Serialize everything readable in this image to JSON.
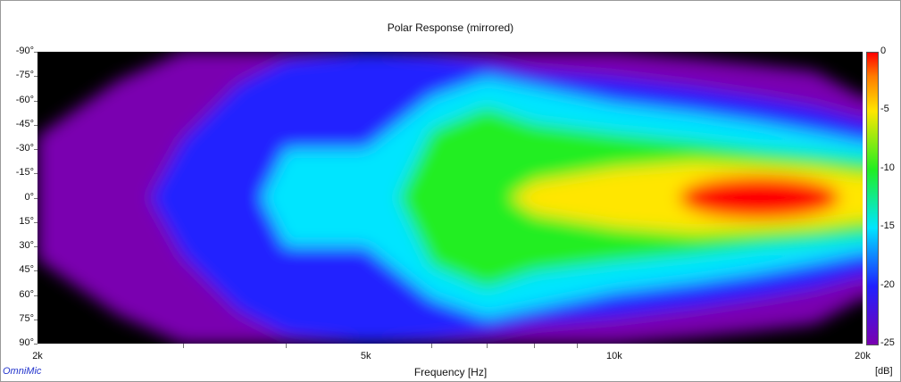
{
  "chart_data": {
    "type": "heatmap",
    "title": "Polar Response (mirrored)",
    "xlabel": "Frequency [Hz]",
    "x_scale": "log",
    "xlim": [
      2000,
      20000
    ],
    "x_tick_labels": [
      "2k",
      "5k",
      "10k",
      "20k"
    ],
    "x_tick_values": [
      2000,
      5000,
      10000,
      20000
    ],
    "y_tick_labels": [
      "-90°",
      "-75°",
      "-60°",
      "-45°",
      "-30°",
      "-15°",
      "0°",
      "15°",
      "30°",
      "45°",
      "60°",
      "75°",
      "90°"
    ],
    "y_tick_values": [
      -90,
      -75,
      -60,
      -45,
      -30,
      -15,
      0,
      15,
      30,
      45,
      60,
      75,
      90
    ],
    "ylim": [
      -90,
      90
    ],
    "colorbar": {
      "unit": "[dB]",
      "range": [
        -25,
        0
      ],
      "tick_labels": [
        "0",
        "-5",
        "-10",
        "-15",
        "-20",
        "-25"
      ],
      "tick_values": [
        0,
        -5,
        -10,
        -15,
        -20,
        -25
      ]
    },
    "beamwidth_contours": {
      "description_levels_db": [
        -25,
        -20,
        -15,
        -10,
        -5
      ],
      "frequencies_hz": [
        2000,
        2500,
        3000,
        3500,
        4000,
        5000,
        6000,
        7000,
        8000,
        10000,
        12500,
        15000,
        17500,
        20000
      ],
      "half_angle_deg": {
        "-25": [
          38,
          72,
          90,
          90,
          90,
          90,
          90,
          90,
          90,
          90,
          86,
          82,
          78,
          62
        ],
        "-20": [
          0,
          0,
          36,
          70,
          85,
          90,
          88,
          84,
          78,
          74,
          68,
          62,
          56,
          48
        ],
        "-15": [
          0,
          0,
          0,
          0,
          30,
          30,
          62,
          74,
          68,
          58,
          52,
          46,
          40,
          34
        ],
        "-10": [
          0,
          0,
          0,
          0,
          0,
          0,
          42,
          56,
          46,
          40,
          35,
          30,
          27,
          24
        ],
        "-5": [
          0,
          0,
          0,
          0,
          0,
          0,
          0,
          0,
          10,
          18,
          22,
          20,
          18,
          14
        ]
      }
    }
  },
  "brand": "OmniMic"
}
